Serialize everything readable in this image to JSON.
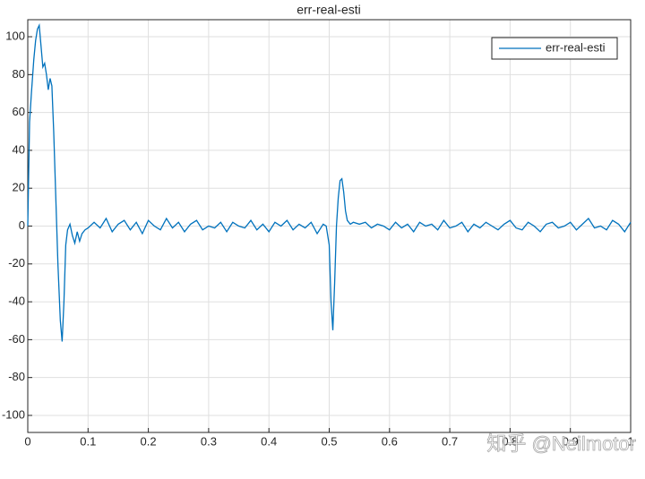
{
  "chart_data": {
    "type": "line",
    "title": "err-real-esti",
    "x": [
      0,
      0.003,
      0.006,
      0.01,
      0.013,
      0.016,
      0.019,
      0.022,
      0.025,
      0.028,
      0.031,
      0.034,
      0.037,
      0.04,
      0.043,
      0.046,
      0.05,
      0.054,
      0.057,
      0.06,
      0.063,
      0.066,
      0.07,
      0.074,
      0.078,
      0.082,
      0.086,
      0.09,
      0.095,
      0.1,
      0.11,
      0.12,
      0.13,
      0.14,
      0.15,
      0.16,
      0.17,
      0.18,
      0.19,
      0.2,
      0.21,
      0.22,
      0.23,
      0.24,
      0.25,
      0.26,
      0.27,
      0.28,
      0.29,
      0.3,
      0.31,
      0.32,
      0.33,
      0.34,
      0.35,
      0.36,
      0.37,
      0.38,
      0.39,
      0.4,
      0.41,
      0.42,
      0.43,
      0.44,
      0.45,
      0.46,
      0.47,
      0.48,
      0.49,
      0.495,
      0.5,
      0.503,
      0.506,
      0.509,
      0.512,
      0.515,
      0.518,
      0.521,
      0.524,
      0.527,
      0.53,
      0.535,
      0.54,
      0.55,
      0.56,
      0.57,
      0.58,
      0.59,
      0.6,
      0.61,
      0.62,
      0.63,
      0.64,
      0.65,
      0.66,
      0.67,
      0.68,
      0.69,
      0.7,
      0.71,
      0.72,
      0.73,
      0.74,
      0.75,
      0.76,
      0.77,
      0.78,
      0.79,
      0.8,
      0.81,
      0.82,
      0.83,
      0.84,
      0.85,
      0.86,
      0.87,
      0.88,
      0.89,
      0.9,
      0.91,
      0.92,
      0.93,
      0.94,
      0.95,
      0.96,
      0.97,
      0.98,
      0.99,
      1
    ],
    "series": [
      {
        "name": "err-real-esti",
        "color": "#0072bd",
        "values": [
          0,
          55,
          70,
          88,
          98,
          104,
          106,
          95,
          84,
          86,
          80,
          72,
          78,
          74,
          50,
          20,
          -20,
          -50,
          -61,
          -40,
          -10,
          -2,
          1,
          -5,
          -9,
          -3,
          -8,
          -4,
          -2,
          -1,
          2,
          -1,
          4,
          -3,
          1,
          3,
          -2,
          2,
          -4,
          3,
          0,
          -2,
          4,
          -1,
          2,
          -3,
          1,
          3,
          -2,
          0,
          -1,
          2,
          -3,
          2,
          0,
          -1,
          3,
          -2,
          1,
          -3,
          2,
          0,
          3,
          -2,
          1,
          -1,
          2,
          -4,
          1,
          0,
          -10,
          -40,
          -55,
          -30,
          0,
          15,
          24,
          25,
          18,
          8,
          3,
          1,
          2,
          1,
          2,
          -1,
          1,
          0,
          -2,
          2,
          -1,
          1,
          -3,
          2,
          0,
          1,
          -2,
          3,
          -1,
          0,
          2,
          -3,
          1,
          -1,
          2,
          0,
          -2,
          1,
          3,
          -1,
          -2,
          2,
          0,
          -3,
          1,
          2,
          -1,
          0,
          2,
          -2,
          1,
          4,
          -1,
          0,
          -2,
          3,
          1,
          -3,
          2
        ]
      }
    ],
    "xlim": [
      0,
      1
    ],
    "xticks": [
      0,
      0.1,
      0.2,
      0.3,
      0.4,
      0.5,
      0.6,
      0.7,
      0.8,
      0.9,
      1
    ],
    "ylim": [
      -109,
      109
    ],
    "yticks": [
      -100,
      -80,
      -60,
      -40,
      -20,
      0,
      20,
      40,
      60,
      80,
      100
    ],
    "grid": true,
    "legend": "upper right",
    "watermark": "知乎 @Neilmotor"
  }
}
